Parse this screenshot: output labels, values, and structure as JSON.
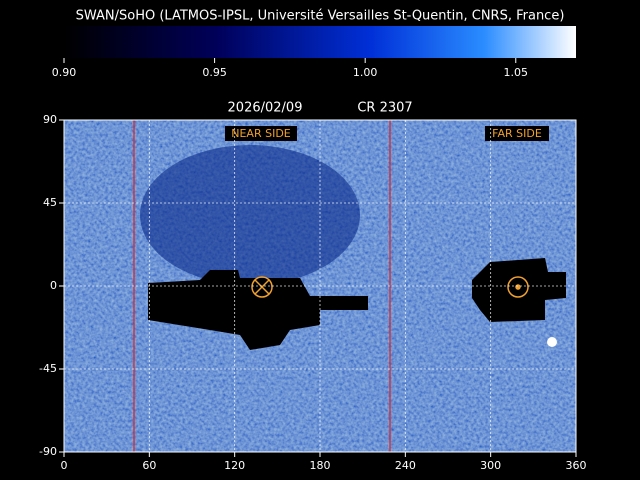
{
  "header": {
    "title": "SWAN/SoHO (LATMOS-IPSL, Université Versailles St-Quentin, CNRS, France)"
  },
  "colorbar": {
    "range": [
      0.9,
      1.07
    ],
    "ticks": [
      {
        "value": 0.9,
        "label": "0.90"
      },
      {
        "value": 0.95,
        "label": "0.95"
      },
      {
        "value": 1.0,
        "label": "1.00"
      },
      {
        "value": 1.05,
        "label": "1.05"
      }
    ]
  },
  "map": {
    "date": "2026/02/09",
    "rotation": "CR 2307",
    "near_label": "NEAR SIDE",
    "far_label": "FAR SIDE",
    "xlim": [
      0,
      360
    ],
    "xticks": [
      0,
      60,
      120,
      180,
      240,
      300,
      360
    ],
    "ylim": [
      -90,
      90
    ],
    "yticks": [
      90,
      45,
      0,
      -45,
      -90
    ]
  }
}
